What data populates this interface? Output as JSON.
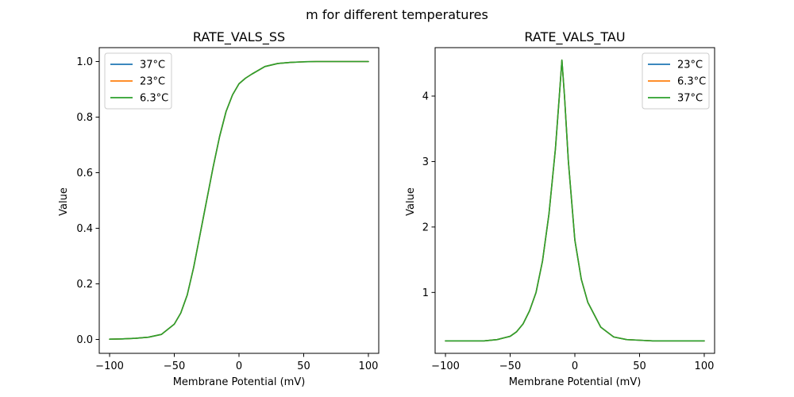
{
  "figure": {
    "title": "m for different temperatures"
  },
  "colors": {
    "blue": "#1f77b4",
    "orange": "#ff7f0e",
    "green": "#2ca02c"
  },
  "chart_data": [
    {
      "type": "line",
      "title": "RATE_VALS_SS",
      "xlabel": "Membrane Potential (mV)",
      "ylabel": "Value",
      "xlim": [
        -108,
        108
      ],
      "ylim": [
        -0.05,
        1.05
      ],
      "xticks": [
        -100,
        -50,
        0,
        50,
        100
      ],
      "xtick_labels": [
        "−100",
        "−50",
        "0",
        "50",
        "100"
      ],
      "yticks": [
        0.0,
        0.2,
        0.4,
        0.6,
        0.8,
        1.0
      ],
      "ytick_labels": [
        "0.0",
        "0.2",
        "0.4",
        "0.6",
        "0.8",
        "1.0"
      ],
      "legend_position": "upper-left",
      "grid": false,
      "x": [
        -100,
        -90,
        -80,
        -70,
        -60,
        -50,
        -45,
        -40,
        -35,
        -30,
        -25,
        -20,
        -15,
        -10,
        -5,
        0,
        5,
        10,
        20,
        30,
        40,
        50,
        60,
        70,
        80,
        90,
        100
      ],
      "series": [
        {
          "name": "37°C",
          "color": "#1f77b4",
          "values": [
            0.001,
            0.002,
            0.004,
            0.008,
            0.018,
            0.055,
            0.095,
            0.16,
            0.26,
            0.38,
            0.5,
            0.62,
            0.73,
            0.82,
            0.88,
            0.92,
            0.94,
            0.955,
            0.982,
            0.993,
            0.997,
            0.999,
            1.0,
            1.0,
            1.0,
            1.0,
            1.0
          ]
        },
        {
          "name": "23°C",
          "color": "#ff7f0e",
          "values": [
            0.001,
            0.002,
            0.004,
            0.008,
            0.018,
            0.055,
            0.095,
            0.16,
            0.26,
            0.38,
            0.5,
            0.62,
            0.73,
            0.82,
            0.88,
            0.92,
            0.94,
            0.955,
            0.982,
            0.993,
            0.997,
            0.999,
            1.0,
            1.0,
            1.0,
            1.0,
            1.0
          ]
        },
        {
          "name": "6.3°C",
          "color": "#2ca02c",
          "values": [
            0.001,
            0.002,
            0.004,
            0.008,
            0.018,
            0.055,
            0.095,
            0.16,
            0.26,
            0.38,
            0.5,
            0.62,
            0.73,
            0.82,
            0.88,
            0.92,
            0.94,
            0.955,
            0.982,
            0.993,
            0.997,
            0.999,
            1.0,
            1.0,
            1.0,
            1.0,
            1.0
          ]
        }
      ]
    },
    {
      "type": "line",
      "title": "RATE_VALS_TAU",
      "xlabel": "Membrane Potential (mV)",
      "ylabel": "Value",
      "xlim": [
        -108,
        108
      ],
      "ylim": [
        0.07,
        4.74
      ],
      "xticks": [
        -100,
        -50,
        0,
        50,
        100
      ],
      "xtick_labels": [
        "−100",
        "−50",
        "0",
        "50",
        "100"
      ],
      "yticks": [
        1,
        2,
        3,
        4
      ],
      "ytick_labels": [
        "1",
        "2",
        "3",
        "4"
      ],
      "legend_position": "upper-right",
      "grid": false,
      "x": [
        -100,
        -90,
        -80,
        -70,
        -60,
        -50,
        -45,
        -40,
        -35,
        -30,
        -25,
        -20,
        -15,
        -12,
        -10,
        -8,
        -5,
        0,
        5,
        10,
        20,
        30,
        40,
        50,
        60,
        70,
        80,
        90,
        100
      ],
      "series": [
        {
          "name": "23°C",
          "color": "#1f77b4",
          "values": [
            0.26,
            0.26,
            0.26,
            0.26,
            0.28,
            0.33,
            0.4,
            0.52,
            0.72,
            1.0,
            1.48,
            2.2,
            3.2,
            4.0,
            4.55,
            4.0,
            3.0,
            1.8,
            1.2,
            0.85,
            0.47,
            0.32,
            0.28,
            0.27,
            0.26,
            0.26,
            0.26,
            0.26,
            0.26
          ]
        },
        {
          "name": "6.3°C",
          "color": "#ff7f0e",
          "values": [
            0.26,
            0.26,
            0.26,
            0.26,
            0.28,
            0.33,
            0.4,
            0.52,
            0.72,
            1.0,
            1.48,
            2.2,
            3.2,
            4.0,
            4.55,
            4.0,
            3.0,
            1.8,
            1.2,
            0.85,
            0.47,
            0.32,
            0.28,
            0.27,
            0.26,
            0.26,
            0.26,
            0.26,
            0.26
          ]
        },
        {
          "name": "37°C",
          "color": "#2ca02c",
          "values": [
            0.26,
            0.26,
            0.26,
            0.26,
            0.28,
            0.33,
            0.4,
            0.52,
            0.72,
            1.0,
            1.48,
            2.2,
            3.2,
            4.0,
            4.55,
            4.0,
            3.0,
            1.8,
            1.2,
            0.85,
            0.47,
            0.32,
            0.28,
            0.27,
            0.26,
            0.26,
            0.26,
            0.26,
            0.26
          ]
        }
      ]
    }
  ]
}
